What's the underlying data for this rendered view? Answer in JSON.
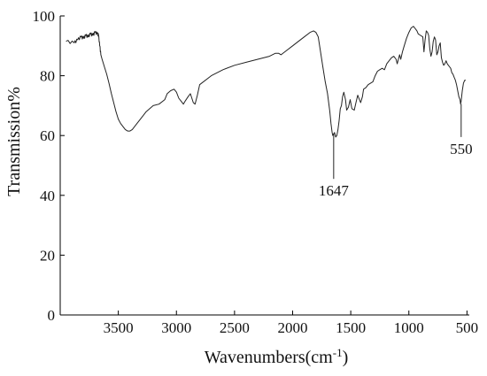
{
  "chart_data": {
    "type": "line",
    "xlabel": "Wavenumbers(cm",
    "xlabel_superscript": "-1",
    "xlabel_suffix": ")",
    "ylabel": "Transmission%",
    "xlim": [
      4000,
      480
    ],
    "ylim": [
      0,
      100
    ],
    "x_reversed": true,
    "grid": false,
    "xticks": [
      3500,
      3000,
      2500,
      2000,
      1500,
      1000,
      500
    ],
    "yticks": [
      0,
      20,
      40,
      60,
      80,
      100
    ],
    "series": [
      {
        "x": [
          3950,
          3880,
          3850,
          3820,
          3800,
          3780,
          3760,
          3740,
          3720,
          3700,
          3680,
          3670,
          3660,
          3650,
          3640,
          3620,
          3600,
          3580,
          3560,
          3540,
          3520,
          3500,
          3480,
          3460,
          3440,
          3420,
          3400,
          3380,
          3360,
          3340,
          3300,
          3260,
          3200,
          3150,
          3100,
          3080,
          3050,
          3020,
          3000,
          2980,
          2960,
          2940,
          2925,
          2900,
          2880,
          2855,
          2840,
          2820,
          2800,
          2700,
          2600,
          2500,
          2400,
          2300,
          2200,
          2150,
          2120,
          2100,
          2050,
          2000,
          1950,
          1900,
          1850,
          1820,
          1800,
          1780,
          1760,
          1740,
          1720,
          1700,
          1690,
          1680,
          1670,
          1660,
          1655,
          1650,
          1647,
          1640,
          1630,
          1620,
          1610,
          1600,
          1590,
          1580,
          1570,
          1560,
          1545,
          1535,
          1520,
          1505,
          1490,
          1470,
          1455,
          1440,
          1430,
          1415,
          1400,
          1390,
          1370,
          1350,
          1330,
          1310,
          1290,
          1270,
          1250,
          1230,
          1210,
          1190,
          1170,
          1150,
          1130,
          1110,
          1100,
          1080,
          1070,
          1055,
          1040,
          1020,
          1000,
          980,
          960,
          950,
          940,
          930,
          920,
          900,
          880,
          870,
          860,
          850,
          840,
          830,
          820,
          810,
          800,
          790,
          780,
          770,
          760,
          750,
          740,
          730,
          720,
          710,
          700,
          690,
          680,
          670,
          660,
          650,
          640,
          630,
          620,
          610,
          600,
          590,
          580,
          570,
          560,
          555,
          550,
          540,
          530,
          520,
          510
        ],
        "y": [
          91.5,
          91,
          92,
          93,
          92.5,
          93.5,
          93,
          94,
          93.5,
          94.5,
          94,
          93.5,
          90,
          87,
          85.5,
          83,
          80.5,
          77.5,
          74,
          71,
          68,
          65.5,
          64,
          63,
          62,
          61.5,
          61.5,
          62,
          63,
          64,
          66,
          68,
          70,
          70.5,
          72,
          74,
          75,
          75.5,
          74.5,
          72.5,
          71.5,
          70.5,
          71.5,
          73,
          74,
          71,
          70.5,
          73.5,
          77,
          80,
          82,
          83.5,
          84.5,
          85.5,
          86.5,
          87.5,
          87.5,
          87,
          88.5,
          90,
          91.5,
          93,
          94.5,
          95,
          94.5,
          93,
          88,
          83,
          78,
          74,
          71,
          68,
          64,
          61,
          60,
          60.5,
          60.5,
          61,
          59.5,
          60,
          62,
          65,
          69,
          70,
          73,
          74.5,
          72,
          68.5,
          69.5,
          72,
          69,
          68.5,
          71,
          73.5,
          72.5,
          71,
          73,
          75.5,
          76,
          77,
          77.5,
          78,
          80,
          81.5,
          82,
          82.5,
          82,
          84,
          85,
          86,
          86.5,
          85.5,
          84,
          87,
          85.5,
          88,
          90,
          92.5,
          94.5,
          96,
          96.5,
          96,
          95.5,
          95,
          94,
          93.5,
          93,
          88,
          92,
          95,
          94.5,
          93.5,
          89,
          86.5,
          88,
          91.5,
          93,
          92,
          87,
          88,
          90,
          91,
          86,
          84.5,
          83.5,
          84,
          85,
          84,
          83.5,
          83,
          82.5,
          81,
          80.5,
          79.5,
          78.5,
          77,
          75,
          73,
          72,
          70.5,
          71.5,
          75,
          77.5,
          78.5,
          78.5
        ]
      }
    ],
    "annotations": [
      {
        "label": "1647",
        "x": 1647,
        "y_from": 60.5,
        "y_to": 45.5
      },
      {
        "label": "550",
        "x": 550,
        "y_from": 70.5,
        "y_to": 59.5
      }
    ]
  }
}
